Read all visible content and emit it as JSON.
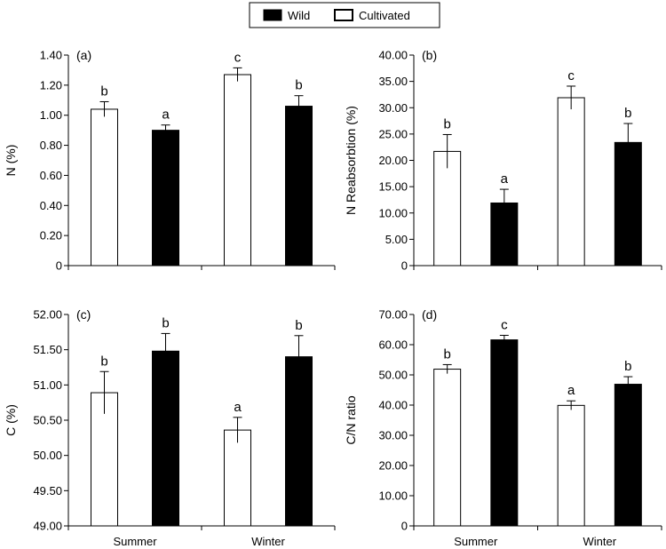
{
  "legend": {
    "wild_label": "Wild",
    "cultivated_label": "Cultivated",
    "wild_color": "#000000",
    "cultivated_color": "#ffffff"
  },
  "chart_data": [
    {
      "type": "bar",
      "panel": "(a)",
      "ylabel": "N (%)",
      "ylim": [
        0,
        1.4
      ],
      "yticks": [
        "0",
        "0.20",
        "0.40",
        "0.60",
        "0.80",
        "1.00",
        "1.20",
        "1.40"
      ],
      "ytick_values": [
        0,
        0.2,
        0.4,
        0.6,
        0.8,
        1.0,
        1.2,
        1.4
      ],
      "categories": [
        "Summer",
        "Winter"
      ],
      "series": [
        {
          "name": "Cultivated",
          "values": [
            1.04,
            1.27
          ],
          "errors": [
            0.05,
            0.045
          ],
          "letters": [
            "b",
            "c"
          ]
        },
        {
          "name": "Wild",
          "values": [
            0.9,
            1.06
          ],
          "errors": [
            0.035,
            0.07
          ],
          "letters": [
            "a",
            "b"
          ]
        }
      ]
    },
    {
      "type": "bar",
      "panel": "(b)",
      "ylabel": "N Reabsorbtion (%)",
      "ylim": [
        0,
        40
      ],
      "yticks": [
        "0",
        "5.00",
        "10.00",
        "15.00",
        "20.00",
        "25.00",
        "30.00",
        "35.00",
        "40.00"
      ],
      "ytick_values": [
        0,
        5,
        10,
        15,
        20,
        25,
        30,
        35,
        40
      ],
      "categories": [
        "Summer",
        "Winter"
      ],
      "series": [
        {
          "name": "Cultivated",
          "values": [
            21.7,
            31.9
          ],
          "errors": [
            3.2,
            2.2
          ],
          "letters": [
            "b",
            "c"
          ]
        },
        {
          "name": "Wild",
          "values": [
            11.9,
            23.4
          ],
          "errors": [
            2.6,
            3.6
          ],
          "letters": [
            "a",
            "b"
          ]
        }
      ]
    },
    {
      "type": "bar",
      "panel": "(c)",
      "ylabel": "C (%)",
      "ylim": [
        49,
        52
      ],
      "yticks": [
        "49.00",
        "49.50",
        "50.00",
        "50.50",
        "51.00",
        "51.50",
        "52.00"
      ],
      "ytick_values": [
        49,
        49.5,
        50,
        50.5,
        51,
        51.5,
        52
      ],
      "categories": [
        "Summer",
        "Winter"
      ],
      "series": [
        {
          "name": "Cultivated",
          "values": [
            50.89,
            50.36
          ],
          "errors": [
            0.3,
            0.18
          ],
          "letters": [
            "b",
            "a"
          ]
        },
        {
          "name": "Wild",
          "values": [
            51.48,
            51.4
          ],
          "errors": [
            0.25,
            0.3
          ],
          "letters": [
            "b",
            "b"
          ]
        }
      ]
    },
    {
      "type": "bar",
      "panel": "(d)",
      "ylabel": "C/N ratio",
      "ylim": [
        0,
        70
      ],
      "yticks": [
        "0",
        "10.00",
        "20.00",
        "30.00",
        "40.00",
        "50.00",
        "60.00",
        "70.00"
      ],
      "ytick_values": [
        0,
        10,
        20,
        30,
        40,
        50,
        60,
        70
      ],
      "categories": [
        "Summer",
        "Winter"
      ],
      "series": [
        {
          "name": "Cultivated",
          "values": [
            51.9,
            39.9
          ],
          "errors": [
            1.5,
            1.5
          ],
          "letters": [
            "b",
            "a"
          ]
        },
        {
          "name": "Wild",
          "values": [
            61.6,
            46.9
          ],
          "errors": [
            1.5,
            2.5
          ],
          "letters": [
            "c",
            "b"
          ]
        }
      ]
    }
  ]
}
